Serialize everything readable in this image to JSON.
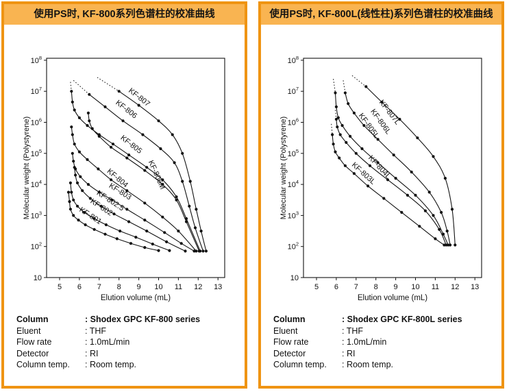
{
  "colors": {
    "panel_border": "#ef9413",
    "title_bg": "#f9b451",
    "ink": "#111111",
    "background": "#ffffff"
  },
  "panels": [
    {
      "title": "使用PS时, KF-800系列色谱柱的校准曲线",
      "specs": [
        {
          "label": "Column",
          "value": ": Shodex GPC KF-800 series",
          "bold": true
        },
        {
          "label": "Eluent",
          "value": ": THF",
          "bold": false
        },
        {
          "label": "Flow rate",
          "value": ": 1.0mL/min",
          "bold": false
        },
        {
          "label": "Detector",
          "value": ": RI",
          "bold": false
        },
        {
          "label": "Column temp.",
          "value": ": Room temp.",
          "bold": false
        }
      ]
    },
    {
      "title": "使用PS时, KF-800L(线性柱)系列色谱柱的校准曲线",
      "specs": [
        {
          "label": "Column",
          "value": ": Shodex GPC KF-800L series",
          "bold": true
        },
        {
          "label": "Eluent",
          "value": ": THF",
          "bold": false
        },
        {
          "label": "Flow rate",
          "value": ": 1.0mL/min",
          "bold": false
        },
        {
          "label": "Detector",
          "value": ": RI",
          "bold": false
        },
        {
          "label": "Column temp.",
          "value": ": Room temp.",
          "bold": false
        }
      ]
    }
  ],
  "chart_data": [
    {
      "type": "line",
      "x_axis": {
        "label": "Elution volume (mL)",
        "ticks": [
          5,
          6,
          7,
          8,
          9,
          10,
          11,
          12,
          13
        ],
        "range": [
          4.4,
          13.35
        ]
      },
      "y_axis": {
        "label": "Molecular weight (Polystyrene)",
        "scale": "log",
        "ticks": [
          10,
          100,
          1000,
          10000,
          100000,
          1000000,
          10000000,
          100000000
        ],
        "range": [
          10,
          100000000.0
        ]
      },
      "series": [
        {
          "name": "KF-801",
          "label": {
            "x": 6.5,
            "y": 850,
            "angle": 33
          },
          "points": [
            [
              5.45,
              5600
            ],
            [
              5.5,
              2800
            ],
            [
              5.55,
              1600
            ],
            [
              5.7,
              1000
            ],
            [
              5.95,
              710
            ],
            [
              6.3,
              500
            ],
            [
              6.75,
              355
            ],
            [
              7.3,
              250
            ],
            [
              7.9,
              178
            ],
            [
              8.6,
              126
            ],
            [
              9.3,
              93
            ],
            [
              10.0,
              74
            ]
          ]
        },
        {
          "name": "KF-802",
          "label": {
            "x": 7.05,
            "y": 1600,
            "angle": 33
          },
          "points": [
            [
              5.55,
              11200
            ],
            [
              5.6,
              5600
            ],
            [
              5.7,
              3160
            ],
            [
              5.9,
              2000
            ],
            [
              6.25,
              1260
            ],
            [
              6.75,
              790
            ],
            [
              7.35,
              500
            ],
            [
              8.05,
              316
            ],
            [
              8.85,
              200
            ],
            [
              9.7,
              120
            ],
            [
              10.55,
              74
            ]
          ]
        },
        {
          "name": "KF-802.5",
          "label": {
            "x": 7.5,
            "y": 2600,
            "angle": 33
          },
          "points": [
            [
              5.75,
              35500
            ],
            [
              5.8,
              20000
            ],
            [
              5.9,
              11200
            ],
            [
              6.15,
              6300
            ],
            [
              6.55,
              3550
            ],
            [
              7.1,
              2000
            ],
            [
              7.75,
              1120
            ],
            [
              8.5,
              630
            ],
            [
              9.4,
              316
            ],
            [
              10.4,
              141
            ],
            [
              11.35,
              71
            ]
          ]
        },
        {
          "name": "KF-803",
          "label": {
            "x": 8.0,
            "y": 5100,
            "angle": 32
          },
          "points": [
            [
              5.65,
              100000.0
            ],
            [
              5.7,
              56000.0
            ],
            [
              5.8,
              31600.0
            ],
            [
              6.05,
              17800.0
            ],
            [
              6.45,
              10000.0
            ],
            [
              7.0,
              5620
            ],
            [
              7.65,
              3160
            ],
            [
              8.4,
              1580
            ],
            [
              9.3,
              710
            ],
            [
              10.3,
              282
            ],
            [
              11.15,
              126
            ],
            [
              11.8,
              71
            ]
          ]
        },
        {
          "name": "KF-804",
          "label": {
            "x": 7.85,
            "y": 14000.0,
            "angle": 40
          },
          "points": [
            [
              5.6,
              710000.0
            ],
            [
              5.65,
              400000.0
            ],
            [
              5.75,
              200000.0
            ],
            [
              6.0,
              112000.0
            ],
            [
              6.4,
              63000.0
            ],
            [
              6.95,
              31600.0
            ],
            [
              7.6,
              14100.0
            ],
            [
              8.4,
              6300
            ],
            [
              9.3,
              2510
            ],
            [
              10.2,
              890
            ],
            [
              11.0,
              316
            ],
            [
              11.9,
              71
            ]
          ]
        },
        {
          "name": "KF-806M",
          "label": {
            "x": 9.8,
            "y": 19000.0,
            "angle": 66
          },
          "points": [
            [
              6.45,
              2000000.0
            ],
            [
              6.5,
              1120000.0
            ],
            [
              6.65,
              630000.0
            ],
            [
              7.0,
              355000.0
            ],
            [
              7.6,
              158000.0
            ],
            [
              8.4,
              71000.0
            ],
            [
              9.3,
              28200.0
            ],
            [
              10.2,
              10000.0
            ],
            [
              10.9,
              3160
            ],
            [
              11.4,
              630
            ],
            [
              12.05,
              71
            ]
          ]
        },
        {
          "name": "KF-805",
          "label": {
            "x": 8.55,
            "y": 170000.0,
            "angle": 38
          },
          "dashed": [
            [
              5.55,
              20000000.0
            ],
            [
              5.6,
              10000000.0
            ]
          ],
          "points": [
            [
              5.6,
              10000000.0
            ],
            [
              5.65,
              4500000.0
            ],
            [
              5.75,
              2500000.0
            ],
            [
              6.0,
              1400000.0
            ],
            [
              6.4,
              790000.0
            ],
            [
              7.0,
              400000.0
            ],
            [
              7.7,
              200000.0
            ],
            [
              8.5,
              89000.0
            ],
            [
              9.4,
              35500.0
            ],
            [
              10.2,
              14100.0
            ],
            [
              10.9,
              3980
            ],
            [
              11.4,
              790
            ],
            [
              12.1,
              71
            ]
          ]
        },
        {
          "name": "KF-806",
          "label": {
            "x": 8.3,
            "y": 2300000.0,
            "angle": 38
          },
          "dashed": [
            [
              5.7,
              22400000.0
            ],
            [
              6.5,
              7900000.0
            ]
          ],
          "points": [
            [
              6.5,
              7900000.0
            ],
            [
              7.3,
              3160000.0
            ],
            [
              8.2,
              1120000.0
            ],
            [
              9.2,
              400000.0
            ],
            [
              10.1,
              141000.0
            ],
            [
              10.8,
              50000.0
            ],
            [
              11.2,
              12600.0
            ],
            [
              11.55,
              2000
            ],
            [
              11.85,
              400
            ],
            [
              12.25,
              71
            ]
          ]
        },
        {
          "name": "KF-807",
          "label": {
            "x": 8.95,
            "y": 5600000.0,
            "angle": 38
          },
          "dashed": [
            [
              6.9,
              28000000.0
            ],
            [
              8.0,
              10000000.0
            ]
          ],
          "points": [
            [
              8.0,
              10000000.0
            ],
            [
              9.0,
              3550000.0
            ],
            [
              10.0,
              1120000.0
            ],
            [
              10.7,
              400000.0
            ],
            [
              11.2,
              100000.0
            ],
            [
              11.6,
              12600.0
            ],
            [
              11.9,
              1580
            ],
            [
              12.15,
              316
            ],
            [
              12.4,
              71
            ]
          ]
        }
      ]
    },
    {
      "type": "line",
      "x_axis": {
        "label": "Elution volume (mL)",
        "ticks": [
          5,
          6,
          7,
          8,
          9,
          10,
          11,
          12,
          13
        ],
        "range": [
          4.4,
          13.35
        ]
      },
      "y_axis": {
        "label": "Molecular weight (Polystyrene)",
        "scale": "log",
        "ticks": [
          10,
          100,
          1000,
          10000,
          100000,
          1000000,
          10000000,
          100000000
        ],
        "range": [
          10,
          100000000.0
        ]
      },
      "series": [
        {
          "name": "KF-803L",
          "label": {
            "x": 7.3,
            "y": 20000.0,
            "angle": 42
          },
          "dashed": [
            [
              5.75,
              890000.0
            ],
            [
              5.8,
              400000.0
            ]
          ],
          "points": [
            [
              5.8,
              400000.0
            ],
            [
              5.85,
              200000.0
            ],
            [
              5.95,
              112000.0
            ],
            [
              6.15,
              71000.0
            ],
            [
              6.45,
              40000.0
            ],
            [
              6.9,
              22400.0
            ],
            [
              7.6,
              8900
            ],
            [
              8.4,
              3550
            ],
            [
              9.3,
              1260
            ],
            [
              10.2,
              447
            ],
            [
              11.0,
              178
            ],
            [
              11.45,
              112
            ]
          ]
        },
        {
          "name": "KF-804L",
          "label": {
            "x": 8.1,
            "y": 32000.0,
            "angle": 47
          },
          "dashed": [
            [
              5.95,
              2500000.0
            ],
            [
              6.0,
              1260000.0
            ]
          ],
          "points": [
            [
              6.0,
              1260000.0
            ],
            [
              6.05,
              710000.0
            ],
            [
              6.2,
              400000.0
            ],
            [
              6.5,
              224000.0
            ],
            [
              7.0,
              100000.0
            ],
            [
              7.7,
              40000.0
            ],
            [
              8.6,
              14100.0
            ],
            [
              9.6,
              4470
            ],
            [
              10.5,
              1410
            ],
            [
              11.2,
              355
            ],
            [
              11.55,
              112
            ]
          ]
        },
        {
          "name": "KF-805L",
          "label": {
            "x": 7.55,
            "y": 700000.0,
            "angle": 54
          },
          "dashed": [
            [
              5.85,
              25000000.0
            ],
            [
              5.95,
              8900000.0
            ]
          ],
          "points": [
            [
              5.95,
              8900000.0
            ],
            [
              6.0,
              3160000.0
            ],
            [
              6.1,
              1410000.0
            ],
            [
              6.3,
              790000.0
            ],
            [
              6.7,
              355000.0
            ],
            [
              7.3,
              141000.0
            ],
            [
              8.1,
              50000.0
            ],
            [
              9.0,
              15800.0
            ],
            [
              10.0,
              4470
            ],
            [
              10.9,
              1000
            ],
            [
              11.4,
              251
            ],
            [
              11.65,
              112
            ]
          ]
        },
        {
          "name": "KF-806L",
          "label": {
            "x": 8.15,
            "y": 950000.0,
            "angle": 54
          },
          "dashed": [
            [
              6.35,
              22400000.0
            ],
            [
              6.45,
              8900000.0
            ]
          ],
          "points": [
            [
              6.45,
              8900000.0
            ],
            [
              6.6,
              4000000.0
            ],
            [
              6.9,
              2000000.0
            ],
            [
              7.4,
              790000.0
            ],
            [
              8.1,
              282000.0
            ],
            [
              8.9,
              89000.0
            ],
            [
              9.8,
              25100.0
            ],
            [
              10.7,
              5620
            ],
            [
              11.3,
              1260
            ],
            [
              11.6,
              316
            ],
            [
              11.75,
              112
            ]
          ]
        },
        {
          "name": "KF-807L",
          "label": {
            "x": 8.6,
            "y": 1900000.0,
            "angle": 52
          },
          "dashed": [
            [
              6.8,
              32000000.0
            ],
            [
              7.5,
              14100000.0
            ]
          ],
          "points": [
            [
              7.5,
              14100000.0
            ],
            [
              8.3,
              4470000.0
            ],
            [
              9.2,
              1260000.0
            ],
            [
              10.1,
              316000.0
            ],
            [
              10.9,
              79000.0
            ],
            [
              11.5,
              15800.0
            ],
            [
              11.85,
              1580
            ],
            [
              12.0,
              112
            ]
          ]
        }
      ]
    }
  ]
}
